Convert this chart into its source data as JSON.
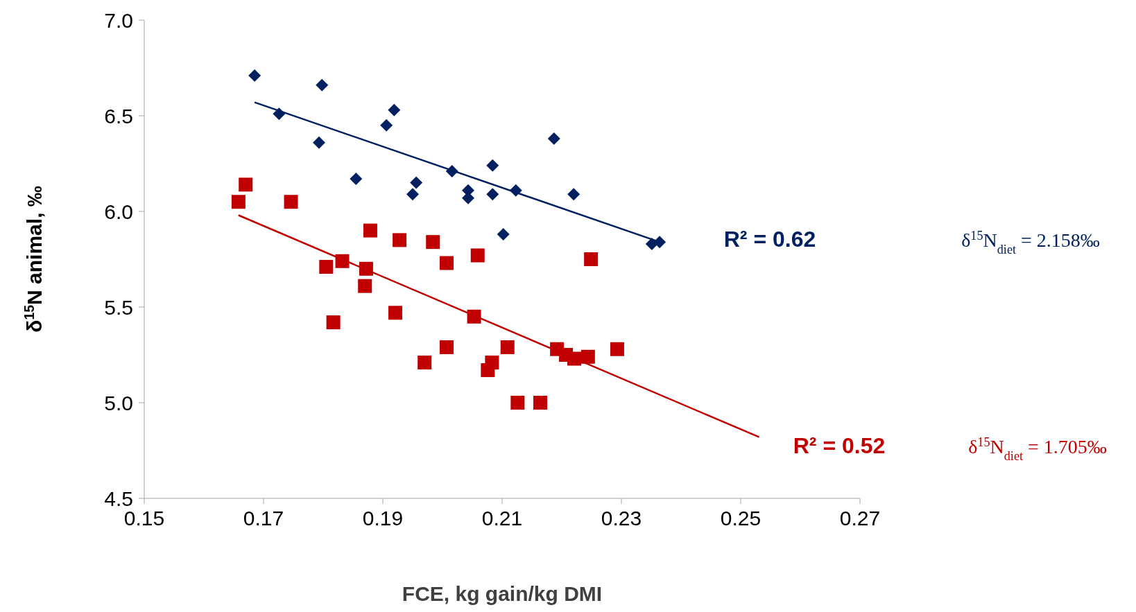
{
  "chart_data": {
    "type": "scatter",
    "xlabel": "FCE, kg gain/kg DMI",
    "ylabel": "δ$^{15}$N animal, ‰",
    "xlim": [
      0.15,
      0.27
    ],
    "xticks": [
      0.15,
      0.17,
      0.19,
      0.21,
      0.23,
      0.25,
      0.27
    ],
    "ylim": [
      4.5,
      7.0
    ],
    "yticks": [
      {
        "value": 4.5,
        "label": "4.5"
      },
      {
        "value": 5,
        "label": "5.0"
      },
      {
        "value": 5.5,
        "label": "5.5"
      },
      {
        "value": 6,
        "label": "6.0"
      },
      {
        "value": 6.5,
        "label": "6.5"
      },
      {
        "value": 7,
        "label": "7.0"
      }
    ],
    "grid": false,
    "legend": false,
    "series": [
      {
        "color": "#002060",
        "marker": "diamond",
        "x": [
          0.1685,
          0.1798,
          0.1726,
          0.1793,
          0.1919,
          0.1906,
          0.1855,
          0.1956,
          0.195,
          0.2016,
          0.2043,
          0.2043,
          0.2084,
          0.2084,
          0.2123,
          0.2102,
          0.2187,
          0.222,
          0.2351,
          0.2364
        ],
        "values": [
          6.71,
          6.66,
          6.51,
          6.36,
          6.53,
          6.45,
          6.17,
          6.15,
          6.09,
          6.21,
          6.11,
          6.07,
          6.24,
          6.09,
          6.11,
          5.88,
          6.38,
          6.09,
          5.83,
          5.84
        ]
      },
      {
        "color": "#c00000",
        "marker": "square",
        "x": [
          0.1658,
          0.167,
          0.1746,
          0.1879,
          0.1928,
          0.1984,
          0.2059,
          0.2249,
          0.1805,
          0.1832,
          0.1872,
          0.187,
          0.2007,
          0.1817,
          0.1921,
          0.2053,
          0.197,
          0.2007,
          0.2083,
          0.2076,
          0.2109,
          0.2192,
          0.2207,
          0.2221,
          0.2244,
          0.2293,
          0.2126,
          0.2164
        ],
        "values": [
          6.05,
          6.14,
          6.05,
          5.9,
          5.85,
          5.84,
          5.77,
          5.75,
          5.71,
          5.74,
          5.7,
          5.61,
          5.73,
          5.42,
          5.47,
          5.45,
          5.21,
          5.29,
          5.21,
          5.17,
          5.29,
          5.28,
          5.25,
          5.23,
          5.24,
          5.28,
          5.0,
          5.0
        ]
      },
      {
        "type": "line",
        "color": "#002060",
        "marker": "none",
        "x": [
          0.1685,
          0.2364
        ],
        "values": [
          6.57,
          5.84
        ]
      },
      {
        "type": "line",
        "color": "#c00000",
        "marker": "none",
        "x": [
          0.1658,
          0.2531
        ],
        "values": [
          5.98,
          4.82
        ]
      }
    ],
    "annotations": [
      "R² = 0.62",
      "δ$^{15}$N$_{diet}$ = 2.158‰",
      "R² = 0.52",
      "δ$^{15}$N$_{diet}$ = 1.705‰"
    ]
  }
}
